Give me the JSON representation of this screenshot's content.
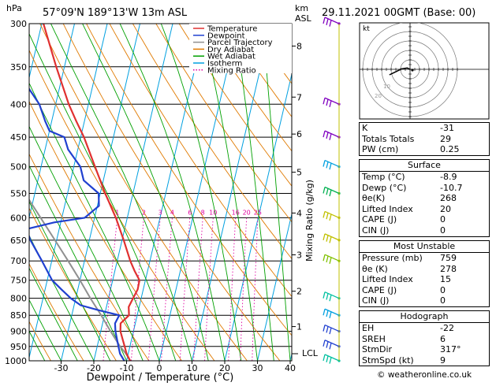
{
  "header": {
    "hpa_label": "hPa",
    "location": "57°09'N  189°13'W  13m  ASL",
    "km_label": "km",
    "asl_label": "ASL",
    "datetime": "29.11.2021  00GMT  (Base: 00)"
  },
  "axes": {
    "xlabel": "Dewpoint / Temperature (°C)",
    "mixing_label": "Mixing Ratio (g/kg)",
    "lcl_label": "LCL"
  },
  "legend": {
    "items": [
      {
        "label": "Temperature",
        "color": "#e03030",
        "style": "solid"
      },
      {
        "label": "Dewpoint",
        "color": "#2040d0",
        "style": "solid"
      },
      {
        "label": "Parcel Trajectory",
        "color": "#909090",
        "style": "solid"
      },
      {
        "label": "Dry Adiabat",
        "color": "#e07a00",
        "style": "solid"
      },
      {
        "label": "Wet Adiabat",
        "color": "#00a000",
        "style": "solid"
      },
      {
        "label": "Isotherm",
        "color": "#00a0e0",
        "style": "solid"
      },
      {
        "label": "Mixing Ratio",
        "color": "#e000a0",
        "style": "dotted"
      }
    ]
  },
  "chart_data": {
    "type": "line",
    "pressure_ticks": [
      300,
      350,
      400,
      450,
      500,
      550,
      600,
      650,
      700,
      750,
      800,
      850,
      900,
      950,
      1000
    ],
    "pressure_labels": [
      "300",
      "350",
      "400",
      "450",
      "500",
      "550",
      "600",
      "650",
      "700",
      "750",
      "800",
      "850",
      "900",
      "950",
      "1000"
    ],
    "x_ticks": [
      -30,
      -20,
      -10,
      0,
      10,
      20,
      30,
      40
    ],
    "x_labels": [
      "-30",
      "-20",
      "-10",
      "0",
      "10",
      "20",
      "30",
      "40"
    ],
    "km_ticks": [
      {
        "label": "8",
        "p": 325
      },
      {
        "label": "7",
        "p": 390
      },
      {
        "label": "6",
        "p": 445
      },
      {
        "label": "5",
        "p": 510
      },
      {
        "label": "4",
        "p": 590
      },
      {
        "label": "3",
        "p": 685
      },
      {
        "label": "2",
        "p": 780
      },
      {
        "label": "1",
        "p": 885
      }
    ],
    "mixing_ratios": [
      1,
      2,
      3,
      4,
      6,
      8,
      10,
      16,
      20,
      25
    ],
    "mixing_labels": [
      "1",
      "2",
      "3",
      "4",
      "6",
      "8",
      "10",
      "16",
      "20",
      "25"
    ],
    "temperature_profile": [
      {
        "p": 1000,
        "t": -8.9
      },
      {
        "p": 975,
        "t": -10.5
      },
      {
        "p": 950,
        "t": -11.6
      },
      {
        "p": 925,
        "t": -12.8
      },
      {
        "p": 900,
        "t": -14.0
      },
      {
        "p": 875,
        "t": -14.5
      },
      {
        "p": 850,
        "t": -12.5
      },
      {
        "p": 825,
        "t": -13.2
      },
      {
        "p": 800,
        "t": -12.5
      },
      {
        "p": 775,
        "t": -11.7
      },
      {
        "p": 750,
        "t": -11.8
      },
      {
        "p": 725,
        "t": -14.0
      },
      {
        "p": 700,
        "t": -16.0
      },
      {
        "p": 650,
        "t": -19.5
      },
      {
        "p": 600,
        "t": -23.5
      },
      {
        "p": 550,
        "t": -28.5
      },
      {
        "p": 500,
        "t": -33.5
      },
      {
        "p": 450,
        "t": -39.0
      },
      {
        "p": 425,
        "t": -42.5
      },
      {
        "p": 400,
        "t": -46.0
      },
      {
        "p": 350,
        "t": -52.5
      },
      {
        "p": 300,
        "t": -59.5
      }
    ],
    "dewpoint_profile": [
      {
        "p": 1000,
        "t": -10.7
      },
      {
        "p": 975,
        "t": -12.5
      },
      {
        "p": 950,
        "t": -13.5
      },
      {
        "p": 925,
        "t": -14.5
      },
      {
        "p": 900,
        "t": -15.5
      },
      {
        "p": 875,
        "t": -16.2
      },
      {
        "p": 850,
        "t": -15.5
      },
      {
        "p": 835,
        "t": -22.0
      },
      {
        "p": 820,
        "t": -28.0
      },
      {
        "p": 800,
        "t": -31.5
      },
      {
        "p": 775,
        "t": -35.0
      },
      {
        "p": 750,
        "t": -38.5
      },
      {
        "p": 700,
        "t": -43.0
      },
      {
        "p": 650,
        "t": -48.0
      },
      {
        "p": 625,
        "t": -50.0
      },
      {
        "p": 610,
        "t": -42.0
      },
      {
        "p": 600,
        "t": -33.0
      },
      {
        "p": 575,
        "t": -29.5
      },
      {
        "p": 550,
        "t": -30.5
      },
      {
        "p": 525,
        "t": -36.0
      },
      {
        "p": 500,
        "t": -38.0
      },
      {
        "p": 470,
        "t": -43.0
      },
      {
        "p": 450,
        "t": -45.0
      },
      {
        "p": 440,
        "t": -50.0
      },
      {
        "p": 425,
        "t": -52.0
      },
      {
        "p": 400,
        "t": -55.0
      },
      {
        "p": 375,
        "t": -60.0
      },
      {
        "p": 350,
        "t": -62.0
      },
      {
        "p": 330,
        "t": -67.0
      },
      {
        "p": 300,
        "t": -72.0
      }
    ],
    "parcel_profile": [
      {
        "p": 1000,
        "t": -8.9
      },
      {
        "p": 975,
        "t": -10.7
      },
      {
        "p": 950,
        "t": -13.0
      },
      {
        "p": 900,
        "t": -17.0
      },
      {
        "p": 850,
        "t": -21.0
      },
      {
        "p": 800,
        "t": -25.5
      },
      {
        "p": 750,
        "t": -30.0
      },
      {
        "p": 700,
        "t": -35.0
      },
      {
        "p": 650,
        "t": -40.5
      },
      {
        "p": 600,
        "t": -46.5
      },
      {
        "p": 550,
        "t": -53.0
      },
      {
        "p": 500,
        "t": -60.0
      }
    ],
    "wind_barbs": [
      {
        "p": 300,
        "color": "#8000c0"
      },
      {
        "p": 400,
        "color": "#8000c0"
      },
      {
        "p": 450,
        "color": "#8000c0"
      },
      {
        "p": 500,
        "color": "#00a0e0"
      },
      {
        "p": 550,
        "color": "#00b050"
      },
      {
        "p": 600,
        "color": "#c0c000"
      },
      {
        "p": 650,
        "color": "#c0c000"
      },
      {
        "p": 700,
        "color": "#80c000"
      },
      {
        "p": 800,
        "color": "#00c0a0"
      },
      {
        "p": 850,
        "color": "#00a0e0"
      },
      {
        "p": 900,
        "color": "#2040d0"
      },
      {
        "p": 950,
        "color": "#2040d0"
      },
      {
        "p": 1000,
        "color": "#00c0a0"
      }
    ],
    "hodograph": {
      "label": "kt",
      "ring_labels": [
        "10",
        "20"
      ],
      "trace": [
        [
          0,
          0
        ],
        [
          -1,
          0.5
        ],
        [
          -3,
          0.2
        ],
        [
          -5,
          -0.8
        ],
        [
          -6.5,
          -1.5
        ],
        [
          -7.5,
          -2
        ]
      ]
    }
  },
  "indices": {
    "top": [
      {
        "label": "K",
        "value": "-31"
      },
      {
        "label": "Totals Totals",
        "value": "29"
      },
      {
        "label": "PW (cm)",
        "value": "0.25"
      }
    ],
    "surface_title": "Surface",
    "surface": [
      {
        "label": "Temp (°C)",
        "value": "-8.9"
      },
      {
        "label": "Dewp (°C)",
        "value": "-10.7"
      },
      {
        "label": "θe(K)",
        "value": "268"
      },
      {
        "label": "Lifted Index",
        "value": "20"
      },
      {
        "label": "CAPE (J)",
        "value": "0"
      },
      {
        "label": "CIN (J)",
        "value": "0"
      }
    ],
    "unstable_title": "Most Unstable",
    "unstable": [
      {
        "label": "Pressure (mb)",
        "value": "759"
      },
      {
        "label": "θe (K)",
        "value": "278"
      },
      {
        "label": "Lifted Index",
        "value": "15"
      },
      {
        "label": "CAPE (J)",
        "value": "0"
      },
      {
        "label": "CIN (J)",
        "value": "0"
      }
    ],
    "hodo_title": "Hodograph",
    "hodo": [
      {
        "label": "EH",
        "value": "-22"
      },
      {
        "label": "SREH",
        "value": "6"
      },
      {
        "label": "StmDir",
        "value": "317°"
      },
      {
        "label": "StmSpd (kt)",
        "value": "9"
      }
    ]
  },
  "footer": {
    "copyright": "© weatheronline.co.uk"
  }
}
